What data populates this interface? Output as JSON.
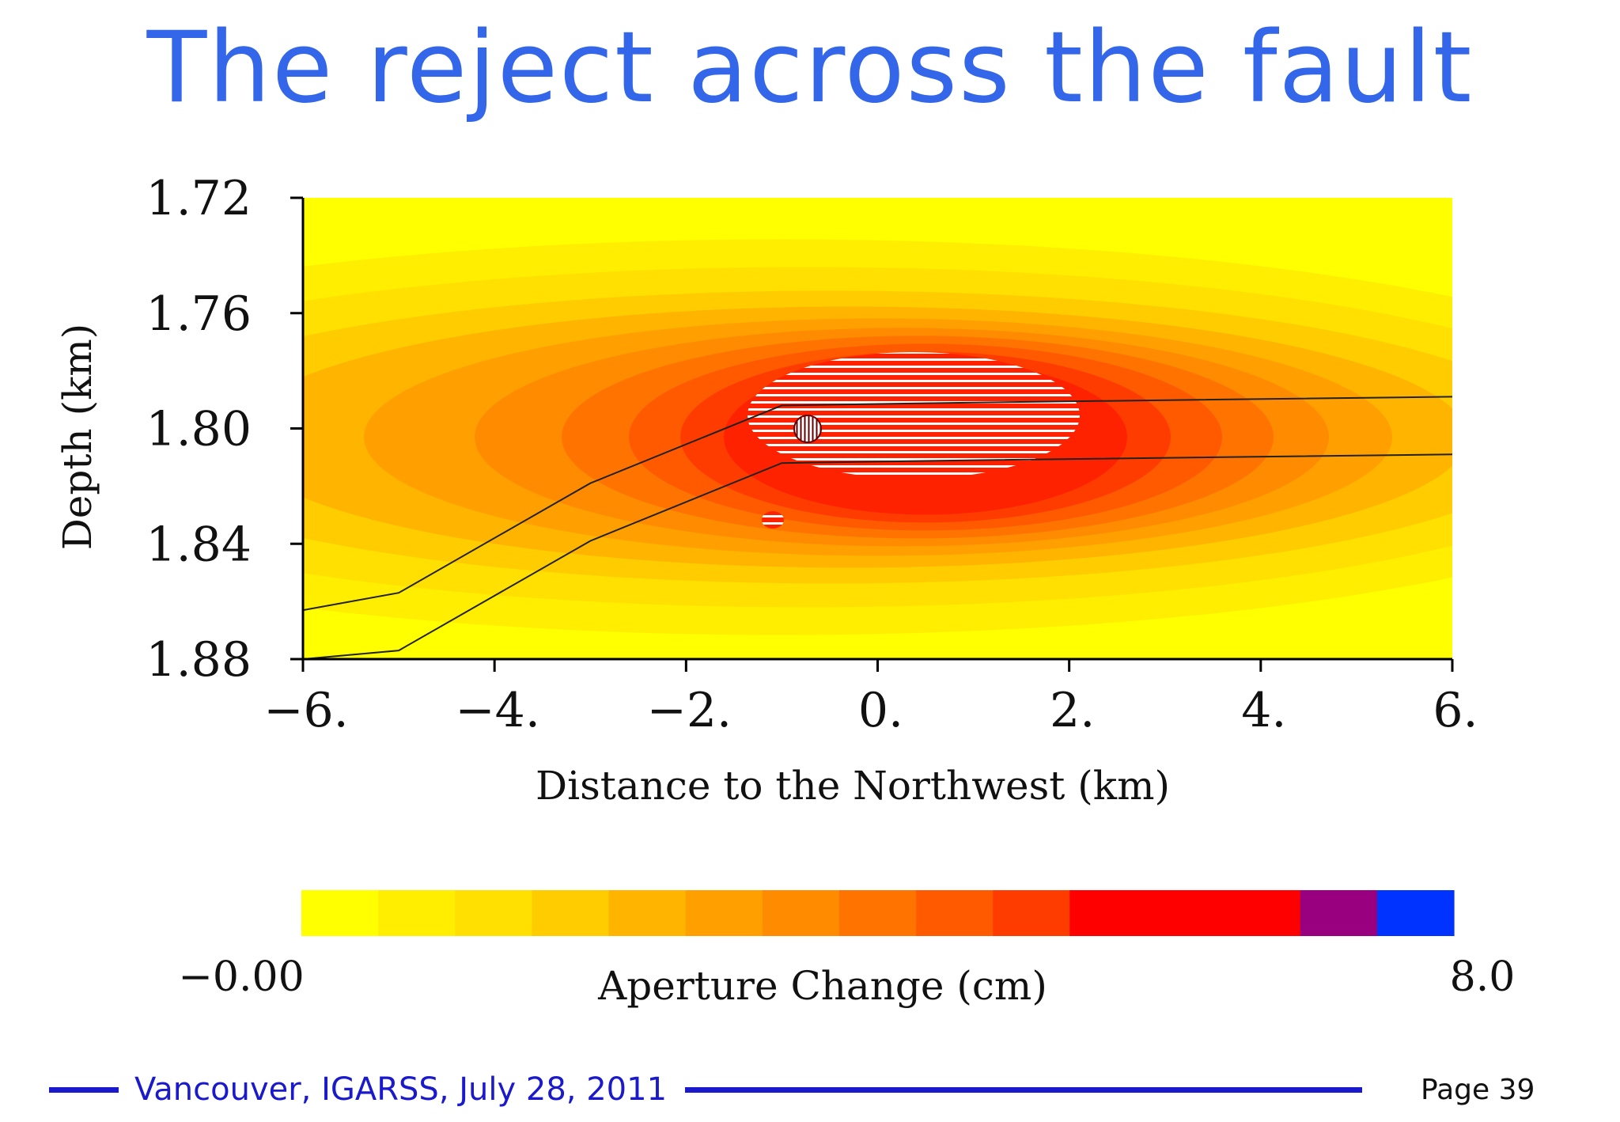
{
  "slide": {
    "title": "The reject across the fault"
  },
  "chart_data": {
    "type": "heatmap",
    "title": "",
    "xlabel": "Distance to the Northwest (km)",
    "ylabel": "Depth (km)",
    "xlim": [
      -6,
      6
    ],
    "ylim": [
      1.72,
      1.88
    ],
    "y_inverted": true,
    "x_ticks": [
      -6,
      -4,
      -2,
      0,
      2,
      4,
      6
    ],
    "x_tick_labels": [
      "−6.",
      "−4.",
      "−2.",
      "0.",
      "2.",
      "4.",
      "6."
    ],
    "y_ticks": [
      1.72,
      1.76,
      1.8,
      1.84,
      1.88
    ],
    "y_tick_labels": [
      "1.72",
      "1.76",
      "1.80",
      "1.84",
      "1.88"
    ],
    "anomaly": {
      "center_x": 0.5,
      "center_depth": 1.803,
      "peak_aperture_change_cm": 6.0
    },
    "fault_lines": [
      {
        "points": [
          [
            -6,
            1.863
          ],
          [
            -5,
            1.857
          ],
          [
            -3,
            1.819
          ],
          [
            -1,
            1.792
          ],
          [
            1,
            1.791
          ],
          [
            6,
            1.789
          ]
        ]
      },
      {
        "points": [
          [
            -6,
            1.88
          ],
          [
            -5,
            1.877
          ],
          [
            -3,
            1.839
          ],
          [
            -1,
            1.812
          ],
          [
            1,
            1.811
          ],
          [
            6,
            1.809
          ]
        ]
      }
    ],
    "colorbar": {
      "label": "Aperture Change (cm)",
      "min_label": "−0.00",
      "max_label": "8.0",
      "min": 0,
      "max": 8,
      "colors": [
        "#ffff00",
        "#ffee00",
        "#ffe000",
        "#ffcc00",
        "#ffb400",
        "#ffa000",
        "#ff8c00",
        "#ff7400",
        "#ff5a00",
        "#ff3c00",
        "#ff0000",
        "#ff0000",
        "#ff0000",
        "#990080",
        "#0033ff"
      ]
    }
  },
  "footer": {
    "event": "Vancouver, IGARSS, July 28, 2011",
    "page": "Page 39"
  },
  "colors": {
    "title": "#3366e8",
    "footer_line": "#1a1acc"
  }
}
